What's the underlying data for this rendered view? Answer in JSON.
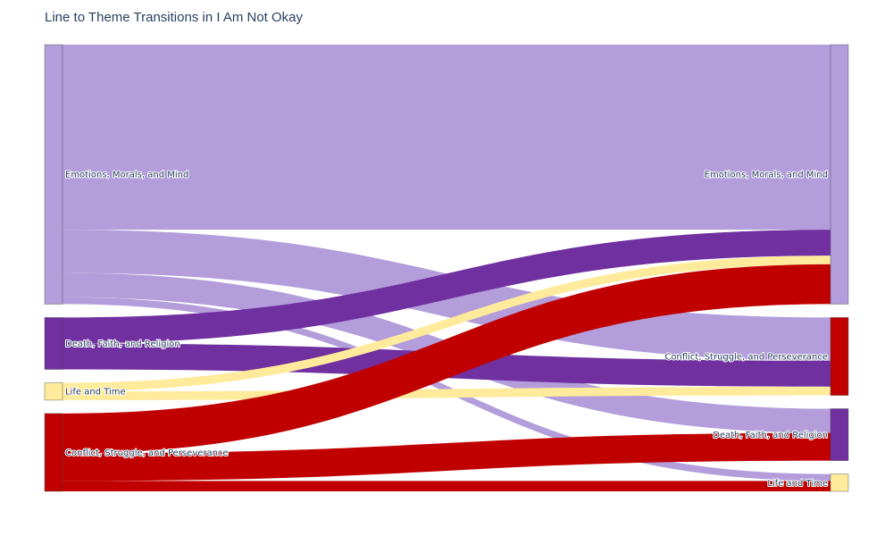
{
  "chart_data": {
    "type": "sankey",
    "title": "Line to Theme Transitions in I Am Not Okay",
    "source_nodes": [
      {
        "label": "Emotions, Morals, and Mind",
        "value": 30,
        "color": "#b39ddb"
      },
      {
        "label": "Death, Faith, and Religion",
        "value": 6,
        "color": "#7030a0"
      },
      {
        "label": "Life and Time",
        "value": 2,
        "color": "#ffeb9b"
      },
      {
        "label": "Conflict, Struggle, and Perseverance",
        "value": 9,
        "color": "#c00000"
      }
    ],
    "target_nodes": [
      {
        "label": "Emotions, Morals, and Mind",
        "value": 30,
        "color": "#b39ddb"
      },
      {
        "label": "Conflict, Struggle, and Perseverance",
        "value": 9,
        "color": "#c00000"
      },
      {
        "label": "Death, Faith, and Religion",
        "value": 6,
        "color": "#7030a0"
      },
      {
        "label": "Life and Time",
        "value": 2,
        "color": "#ffeb9b"
      }
    ],
    "links": [
      {
        "source": 0,
        "target": 0,
        "value": 21.4
      },
      {
        "source": 0,
        "target": 1,
        "value": 5.0
      },
      {
        "source": 0,
        "target": 2,
        "value": 2.8
      },
      {
        "source": 0,
        "target": 3,
        "value": 0.8
      },
      {
        "source": 1,
        "target": 0,
        "value": 3.0
      },
      {
        "source": 1,
        "target": 1,
        "value": 3.0
      },
      {
        "source": 2,
        "target": 0,
        "value": 1.0
      },
      {
        "source": 2,
        "target": 1,
        "value": 1.0
      },
      {
        "source": 3,
        "target": 0,
        "value": 4.6
      },
      {
        "source": 3,
        "target": 2,
        "value": 3.2
      },
      {
        "source": 3,
        "target": 3,
        "value": 1.2
      }
    ]
  }
}
